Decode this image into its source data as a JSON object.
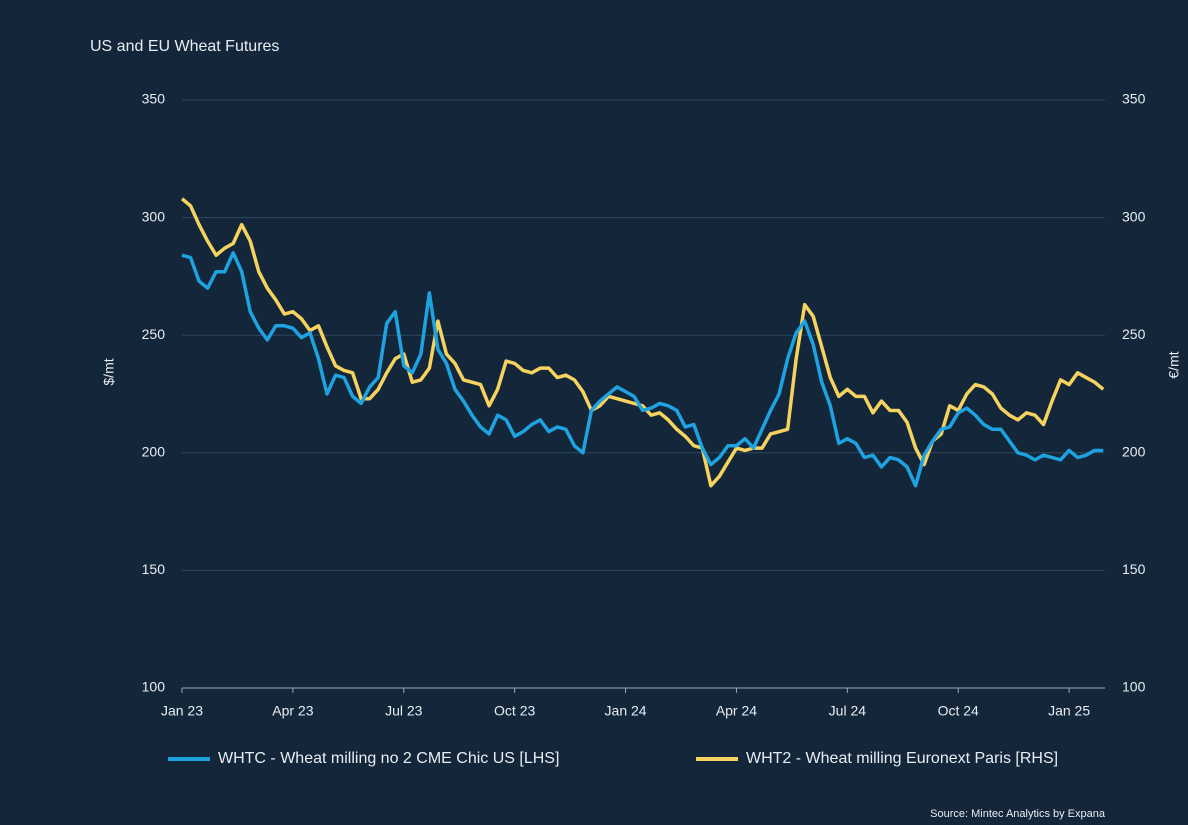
{
  "chart_data": {
    "type": "line",
    "title": "US and EU Wheat Futures",
    "ylabel": "$/mt",
    "y2label": "€/mt",
    "source": "Source:  Mintec Analytics by Expana",
    "categories": [
      "Jan 23",
      null,
      null,
      null,
      null,
      null,
      null,
      null,
      null,
      null,
      null,
      null,
      null,
      "Apr 23",
      null,
      null,
      null,
      null,
      null,
      null,
      null,
      null,
      null,
      null,
      null,
      null,
      "Jul 23",
      null,
      null,
      null,
      null,
      null,
      null,
      null,
      null,
      null,
      null,
      null,
      null,
      "Oct 23",
      null,
      null,
      null,
      null,
      null,
      null,
      null,
      null,
      null,
      null,
      null,
      null,
      "Jan 24",
      null,
      null,
      null,
      null,
      null,
      null,
      null,
      null,
      null,
      null,
      null,
      null,
      "Apr 24",
      null,
      null,
      null,
      null,
      null,
      null,
      null,
      null,
      null,
      null,
      null,
      null,
      "Jul 24",
      null,
      null,
      null,
      null,
      null,
      null,
      null,
      null,
      null,
      null,
      null,
      null,
      "Oct 24",
      null,
      null,
      null,
      null,
      null,
      null,
      null,
      null,
      null,
      null,
      null,
      null,
      "Jan 25",
      null,
      null,
      null,
      null
    ],
    "series": [
      {
        "name": "WHTC - Wheat milling no 2 CME Chic US [LHS]",
        "color": "#1ea3e0",
        "axis": "y",
        "values": [
          284,
          283,
          273,
          270,
          277,
          277,
          285,
          277,
          260,
          253,
          248,
          254,
          254,
          253,
          249,
          251,
          240,
          225,
          233,
          232,
          224,
          221,
          228,
          232,
          255,
          260,
          237,
          234,
          242,
          268,
          244,
          238,
          227,
          222,
          216,
          211,
          208,
          216,
          214,
          207,
          209,
          212,
          214,
          209,
          211,
          210,
          203,
          200,
          218,
          222,
          225,
          228,
          226,
          224,
          218,
          219,
          221,
          220,
          218,
          211,
          212,
          202,
          195,
          198,
          203,
          203,
          206,
          202,
          210,
          218,
          225,
          240,
          251,
          256,
          246,
          230,
          220,
          204,
          206,
          204,
          198,
          199,
          194,
          198,
          197,
          194,
          186,
          199,
          205,
          210,
          211,
          217,
          219,
          216,
          212,
          210,
          210,
          205,
          200,
          199,
          197,
          199,
          198,
          197,
          201,
          198,
          199,
          201,
          201
        ]
      },
      {
        "name": "WHT2 - Wheat milling Euronext Paris [RHS]",
        "color": "#f6d35e",
        "axis": "y2",
        "values": [
          308,
          305,
          297,
          290,
          284,
          287,
          289,
          297,
          290,
          277,
          270,
          265,
          259,
          260,
          257,
          252,
          254,
          245,
          237,
          235,
          234,
          223,
          223,
          227,
          234,
          240,
          242,
          230,
          231,
          236,
          256,
          242,
          238,
          231,
          230,
          229,
          220,
          227,
          239,
          238,
          235,
          234,
          236,
          236,
          232,
          233,
          231,
          226,
          218,
          220,
          224,
          223,
          222,
          221,
          220,
          216,
          217,
          214,
          210,
          207,
          203,
          202,
          186,
          190,
          196,
          202,
          201,
          202,
          202,
          208,
          209,
          210,
          240,
          263,
          258,
          245,
          232,
          224,
          227,
          224,
          224,
          217,
          222,
          218,
          218,
          213,
          202,
          195,
          205,
          208,
          220,
          218,
          225,
          229,
          228,
          225,
          219,
          216,
          214,
          217,
          216,
          212,
          222,
          231,
          229,
          234,
          232,
          230,
          227
        ]
      }
    ],
    "ylim": [
      100,
      350
    ],
    "yticks": [
      100,
      150,
      200,
      250,
      300,
      350
    ],
    "y2lim": [
      100,
      350
    ],
    "y2ticks": [
      100,
      150,
      200,
      250,
      300,
      350
    ],
    "grid": true
  }
}
